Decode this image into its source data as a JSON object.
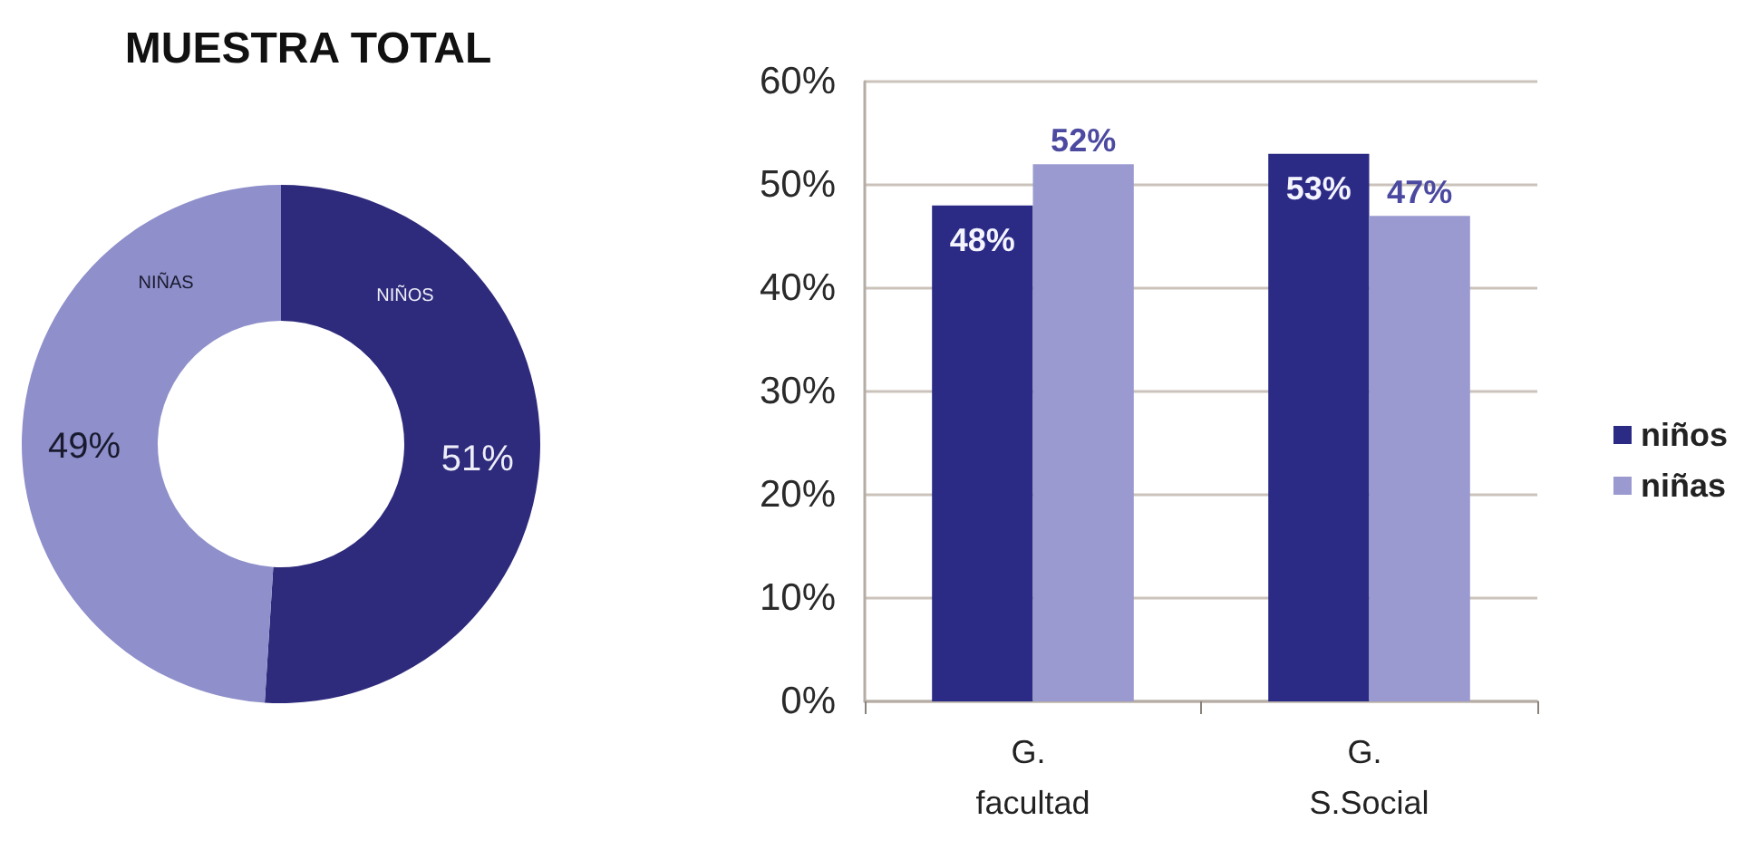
{
  "chart_data": [
    {
      "type": "donut",
      "title": "MUESTRA TOTAL",
      "categories": [
        "NIÑOS",
        "NIÑAS"
      ],
      "values": [
        51,
        49
      ],
      "colors": [
        "#2e2a7c",
        "#8e8fcb"
      ],
      "value_labels": [
        "51%",
        "49%"
      ]
    },
    {
      "type": "bar",
      "categories": [
        "G. facultad",
        "G. S.Social"
      ],
      "series": [
        {
          "name": "niños",
          "color": "#2b2a85",
          "values": [
            48,
            53
          ],
          "value_labels": [
            "48%",
            "53%"
          ]
        },
        {
          "name": "niñas",
          "color": "#9a9ad0",
          "values": [
            52,
            47
          ],
          "value_labels": [
            "52%",
            "47%"
          ]
        }
      ],
      "ylim": [
        0,
        60
      ],
      "yticks": [
        {
          "value": 0,
          "label": "0%"
        },
        {
          "value": 10,
          "label": "10%"
        },
        {
          "value": 20,
          "label": "20%"
        },
        {
          "value": 30,
          "label": "30%"
        },
        {
          "value": 40,
          "label": "40%"
        },
        {
          "value": 50,
          "label": "50%"
        },
        {
          "value": 60,
          "label": "60%"
        }
      ],
      "grid": "y",
      "legend": "right"
    }
  ]
}
